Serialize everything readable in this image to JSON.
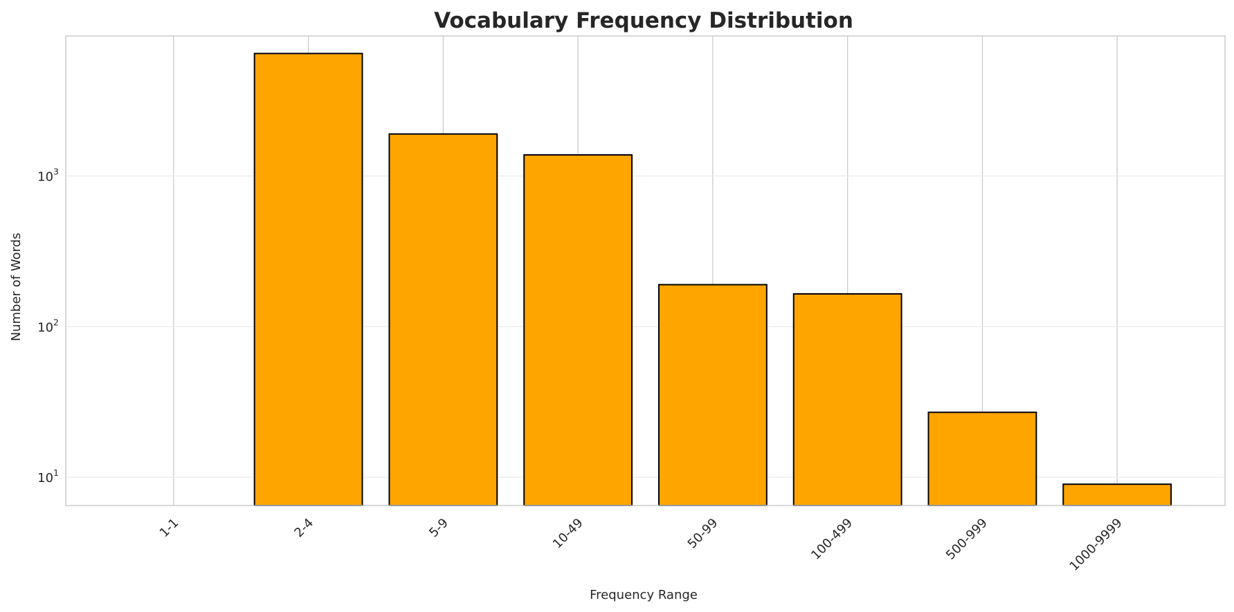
{
  "chart_data": {
    "type": "bar",
    "title": "Vocabulary Frequency Distribution",
    "xlabel": "Frequency Range",
    "ylabel": "Number of Words",
    "categories": [
      "1-1",
      "2-4",
      "5-9",
      "10-49",
      "50-99",
      "100-499",
      "500-999",
      "1000-9999"
    ],
    "values": [
      0,
      6500,
      1900,
      1380,
      190,
      165,
      27,
      9
    ],
    "y_scale": "log",
    "ylim": [
      6.5,
      8500
    ],
    "y_ticks": [
      {
        "base": "10",
        "exp": "1",
        "value": 10
      },
      {
        "base": "10",
        "exp": "2",
        "value": 100
      },
      {
        "base": "10",
        "exp": "3",
        "value": 1000
      }
    ],
    "grid": true,
    "bar_color": "#ffa500",
    "bar_edge_color": "#000000",
    "grid_color": "#cccccc"
  }
}
